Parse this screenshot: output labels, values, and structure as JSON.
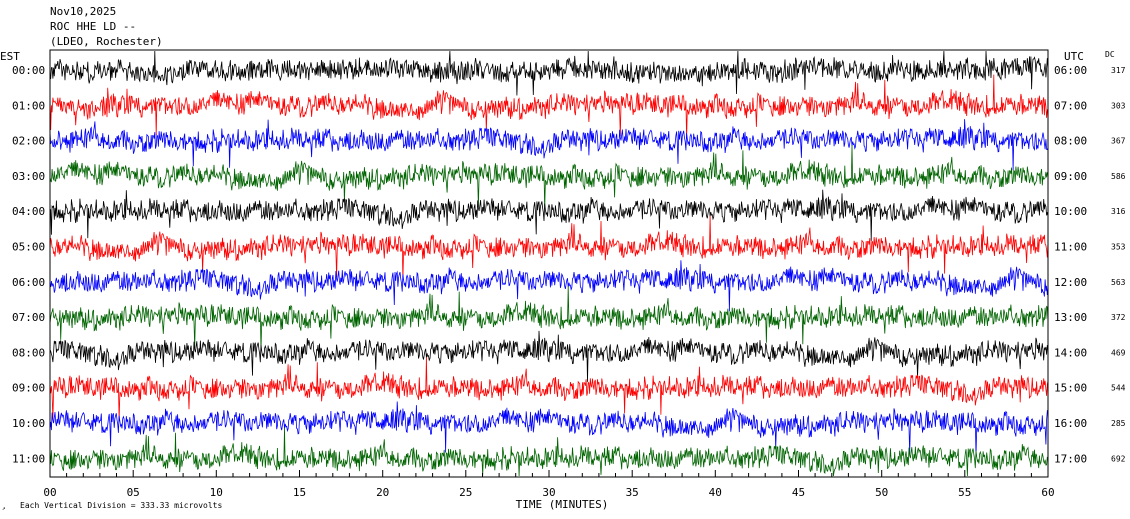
{
  "header": {
    "date": "Nov10,2025",
    "station": "ROC HHE LD --",
    "network": "(LDEO, Rochester)"
  },
  "axis": {
    "left_tz": "EST",
    "right_tz": "UTC",
    "dc_label": "DC",
    "xlabel": "TIME (MINUTES)",
    "scale_note": "Each Vertical Division =  333.33 microvolts"
  },
  "colors": {
    "cycle": [
      "#000000",
      "#ff0000",
      "#0000ff",
      "#006400"
    ],
    "frame": "#000000",
    "background": "#ffffff"
  },
  "chart_data": {
    "type": "line",
    "x_range": [
      0,
      60
    ],
    "x_ticks": [
      "00",
      "05",
      "10",
      "15",
      "20",
      "25",
      "30",
      "35",
      "40",
      "45",
      "50",
      "55",
      "60"
    ],
    "rows": [
      {
        "est": "00:00",
        "utc": "06:00",
        "dc": "317",
        "color": "#000000"
      },
      {
        "est": "01:00",
        "utc": "07:00",
        "dc": "303",
        "color": "#ff0000"
      },
      {
        "est": "02:00",
        "utc": "08:00",
        "dc": "367",
        "color": "#0000ff"
      },
      {
        "est": "03:00",
        "utc": "09:00",
        "dc": "586",
        "color": "#006400"
      },
      {
        "est": "04:00",
        "utc": "10:00",
        "dc": "316",
        "color": "#000000"
      },
      {
        "est": "05:00",
        "utc": "11:00",
        "dc": "353",
        "color": "#ff0000"
      },
      {
        "est": "06:00",
        "utc": "12:00",
        "dc": "563",
        "color": "#0000ff"
      },
      {
        "est": "07:00",
        "utc": "13:00",
        "dc": "372",
        "color": "#006400"
      },
      {
        "est": "08:00",
        "utc": "14:00",
        "dc": "469",
        "color": "#000000"
      },
      {
        "est": "09:00",
        "utc": "15:00",
        "dc": "544",
        "color": "#ff0000"
      },
      {
        "est": "10:00",
        "utc": "16:00",
        "dc": "285",
        "color": "#0000ff"
      },
      {
        "est": "11:00",
        "utc": "17:00",
        "dc": "692",
        "color": "#006400"
      }
    ]
  }
}
